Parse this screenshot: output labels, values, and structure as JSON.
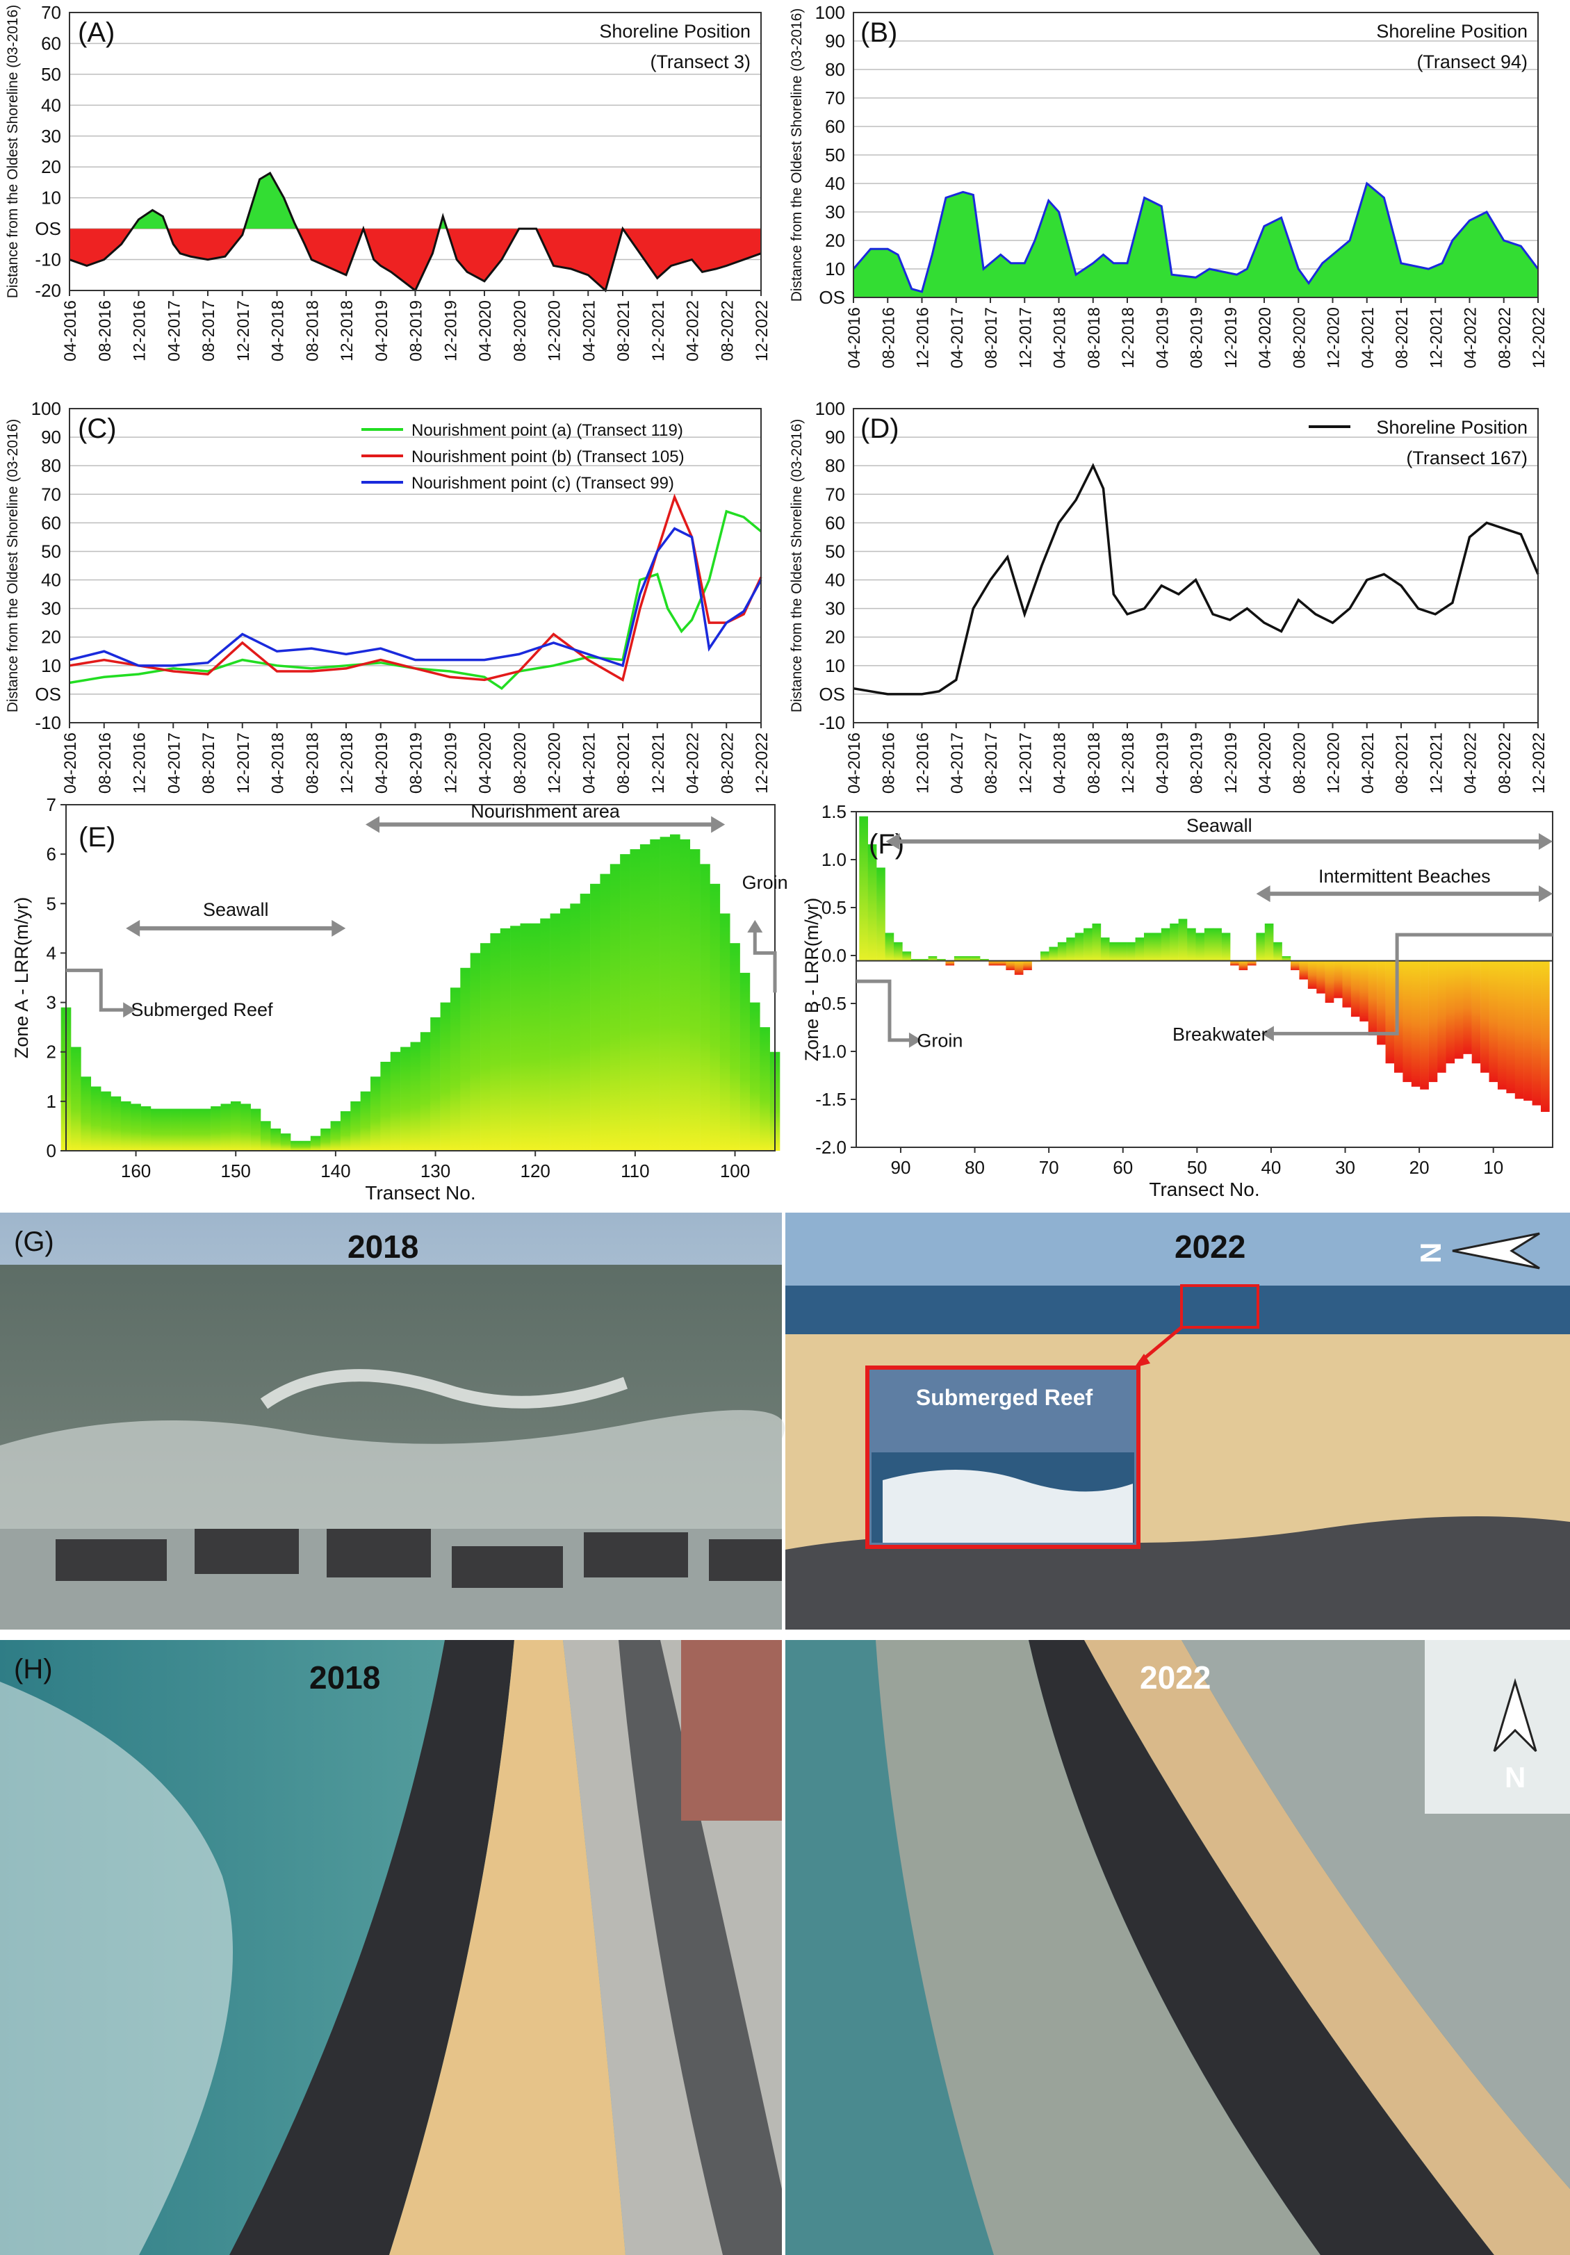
{
  "colors": {
    "gain": "#33dd33",
    "loss": "#ee2222",
    "sea": "#4e8f95",
    "sand": "#e9c98a",
    "rock": "#2f2f33",
    "reef_box": "#e51b1b"
  },
  "chart_data": [
    {
      "panel": "(A)",
      "type": "area",
      "title": "Shoreline Position",
      "subtitle": "(Transect 3)",
      "ylabel": "Distance from the Oldest Shoreline (03-2016)",
      "ylim": [
        -20,
        70
      ],
      "yticks": [
        "-20",
        "-10",
        "OS",
        "10",
        "20",
        "30",
        "40",
        "50",
        "60",
        "70"
      ],
      "xticks": [
        "04-2016",
        "08-2016",
        "12-2016",
        "04-2017",
        "08-2017",
        "12-2017",
        "04-2018",
        "08-2018",
        "12-2018",
        "04-2019",
        "08-2019",
        "12-2019",
        "04-2020",
        "08-2020",
        "12-2020",
        "04-2021",
        "08-2021",
        "12-2021",
        "04-2022",
        "08-2022",
        "12-2022"
      ],
      "x": [
        0,
        0.5,
        1,
        1.5,
        2,
        2.4,
        2.7,
        3,
        3.2,
        3.5,
        4,
        4.5,
        5,
        5.5,
        5.8,
        6.2,
        6.5,
        6.8,
        7,
        7.4,
        8,
        8.5,
        8.8,
        9,
        9.3,
        10,
        10.5,
        10.8,
        11.2,
        11.5,
        12,
        12.5,
        13,
        13.5,
        14,
        14.5,
        15,
        15.5,
        16,
        16.5,
        17,
        17.4,
        18,
        18.3,
        18.7,
        19,
        19.5,
        20
      ],
      "y": [
        -10,
        -12,
        -10,
        -5,
        3,
        6,
        4,
        -5,
        -8,
        -9,
        -10,
        -9,
        -2,
        16,
        18,
        10,
        2,
        -5,
        -10,
        -12,
        -15,
        0,
        -10,
        -12,
        -14,
        -20,
        -8,
        4,
        -10,
        -14,
        -17,
        -10,
        0,
        0,
        -12,
        -13,
        -15,
        -20,
        0,
        -8,
        -16,
        -12,
        -10,
        -14,
        -13,
        -12,
        -10,
        -8
      ]
    },
    {
      "panel": "(B)",
      "type": "area",
      "title": "Shoreline Position",
      "subtitle": "(Transect 94)",
      "ylabel": "Distance from the Oldest Shoreline (03-2016)",
      "ylim": [
        0,
        100
      ],
      "yticks": [
        "OS",
        "10",
        "20",
        "30",
        "40",
        "50",
        "60",
        "70",
        "80",
        "90",
        "100"
      ],
      "xticks": [
        "04-2016",
        "08-2016",
        "12-2016",
        "04-2017",
        "08-2017",
        "12-2017",
        "04-2018",
        "08-2018",
        "12-2018",
        "04-2019",
        "08-2019",
        "12-2019",
        "04-2020",
        "08-2020",
        "12-2020",
        "04-2021",
        "08-2021",
        "12-2021",
        "04-2022",
        "08-2022",
        "12-2022"
      ],
      "x": [
        0,
        0.5,
        1,
        1.3,
        1.7,
        2,
        2.3,
        2.7,
        3.2,
        3.5,
        3.8,
        4.3,
        4.6,
        5,
        5.3,
        5.7,
        6,
        6.5,
        7,
        7.3,
        7.6,
        8,
        8.5,
        9,
        9.3,
        10,
        10.4,
        10.8,
        11.2,
        11.5,
        12,
        12.5,
        13,
        13.3,
        13.7,
        14,
        14.5,
        15,
        15.5,
        16,
        16.4,
        16.8,
        17.2,
        17.5,
        18,
        18.5,
        19,
        19.5,
        20
      ],
      "y": [
        10,
        17,
        17,
        15,
        3,
        2,
        15,
        35,
        37,
        36,
        10,
        15,
        12,
        12,
        20,
        34,
        30,
        8,
        12,
        15,
        12,
        12,
        35,
        32,
        8,
        7,
        10,
        9,
        8,
        10,
        25,
        28,
        10,
        5,
        12,
        15,
        20,
        40,
        35,
        12,
        11,
        10,
        12,
        20,
        27,
        30,
        20,
        18,
        10
      ]
    },
    {
      "panel": "(C)",
      "type": "line",
      "ylabel": "Distance from the Oldest Shoreline (03-2016)",
      "ylim": [
        -10,
        100
      ],
      "yticks": [
        "-10",
        "OS",
        "10",
        "20",
        "30",
        "40",
        "50",
        "60",
        "70",
        "80",
        "90",
        "100"
      ],
      "xticks": [
        "04-2016",
        "08-2016",
        "12-2016",
        "04-2017",
        "08-2017",
        "12-2017",
        "04-2018",
        "08-2018",
        "12-2018",
        "04-2019",
        "08-2019",
        "12-2019",
        "04-2020",
        "08-2020",
        "12-2020",
        "04-2021",
        "08-2021",
        "12-2021",
        "04-2022",
        "08-2022",
        "12-2022"
      ],
      "series": [
        {
          "name": "Nourishment point (a) (Transect 119)",
          "color": "#22dd22",
          "x": [
            0,
            1,
            2,
            3,
            4,
            5,
            6,
            7,
            8,
            9,
            10,
            11,
            12,
            12.5,
            13,
            14,
            15,
            16,
            16.5,
            17,
            17.3,
            17.7,
            18,
            18.5,
            19,
            19.5,
            20
          ],
          "y": [
            4,
            6,
            7,
            9,
            8,
            12,
            10,
            9,
            10,
            11,
            9,
            8,
            6,
            2,
            8,
            10,
            13,
            12,
            40,
            42,
            30,
            22,
            26,
            40,
            64,
            62,
            57
          ]
        },
        {
          "name": "Nourishment point (b) (Transect 105)",
          "color": "#e21a1a",
          "x": [
            0,
            1,
            2,
            3,
            4,
            5,
            6,
            7,
            8,
            9,
            10,
            11,
            12,
            13,
            14,
            15,
            16,
            16.5,
            17,
            17.5,
            18,
            18.5,
            19,
            19.5,
            20
          ],
          "y": [
            10,
            12,
            10,
            8,
            7,
            18,
            8,
            8,
            9,
            12,
            9,
            6,
            5,
            8,
            21,
            12,
            5,
            30,
            50,
            69,
            55,
            25,
            25,
            28,
            41
          ]
        },
        {
          "name": "Nourishment point (c) (Transect 99)",
          "color": "#1a2adc",
          "x": [
            0,
            1,
            2,
            3,
            4,
            5,
            6,
            7,
            8,
            9,
            10,
            11,
            12,
            13,
            14,
            15,
            16,
            16.5,
            17,
            17.5,
            18,
            18.5,
            19,
            19.5,
            20
          ],
          "y": [
            12,
            15,
            10,
            10,
            11,
            21,
            15,
            16,
            14,
            16,
            12,
            12,
            12,
            14,
            18,
            14,
            10,
            35,
            50,
            58,
            55,
            16,
            25,
            29,
            40
          ]
        }
      ]
    },
    {
      "panel": "(D)",
      "type": "line",
      "title": "Shoreline Position",
      "subtitle": "(Transect 167)",
      "ylabel": "Distance from the Oldest Shoreline (03-2016)",
      "ylim": [
        -10,
        100
      ],
      "yticks": [
        "-10",
        "OS",
        "10",
        "20",
        "30",
        "40",
        "50",
        "60",
        "70",
        "80",
        "90",
        "100"
      ],
      "xticks": [
        "04-2016",
        "08-2016",
        "12-2016",
        "04-2017",
        "08-2017",
        "12-2017",
        "04-2018",
        "08-2018",
        "12-2018",
        "04-2019",
        "08-2019",
        "12-2019",
        "04-2020",
        "08-2020",
        "12-2020",
        "04-2021",
        "08-2021",
        "12-2021",
        "04-2022",
        "08-2022",
        "12-2022"
      ],
      "x": [
        0,
        1,
        2,
        2.5,
        3,
        3.5,
        4,
        4.5,
        5,
        5.5,
        6,
        6.5,
        7,
        7.3,
        7.6,
        8,
        8.5,
        9,
        9.5,
        10,
        10.5,
        11,
        11.5,
        12,
        12.5,
        13,
        13.5,
        14,
        14.5,
        15,
        15.5,
        16,
        16.5,
        17,
        17.5,
        18,
        18.5,
        19,
        19.5,
        20
      ],
      "y": [
        2,
        0,
        0,
        1,
        5,
        30,
        40,
        48,
        28,
        45,
        60,
        68,
        80,
        72,
        35,
        28,
        30,
        38,
        35,
        40,
        28,
        26,
        30,
        25,
        22,
        33,
        28,
        25,
        30,
        40,
        42,
        38,
        30,
        28,
        32,
        55,
        60,
        58,
        56,
        42
      ]
    },
    {
      "panel": "(E)",
      "type": "bar",
      "ylabel": "Zone A - LRR(m/yr)",
      "xlabel": "Transect No.",
      "xlim": [
        167,
        96
      ],
      "ylim": [
        0,
        7
      ],
      "xticks": [
        "160",
        "150",
        "140",
        "130",
        "120",
        "110",
        "100"
      ],
      "yticks": [
        "0",
        "1",
        "2",
        "3",
        "4",
        "5",
        "6",
        "7"
      ],
      "annotations": [
        "Nourishment area",
        "Seawall",
        "Submerged Reef",
        "Groin"
      ],
      "x_from": 167,
      "x_to": 96,
      "values": [
        2.9,
        2.1,
        1.5,
        1.3,
        1.2,
        1.1,
        1.0,
        0.95,
        0.9,
        0.85,
        0.85,
        0.85,
        0.85,
        0.85,
        0.85,
        0.9,
        0.95,
        1.0,
        0.95,
        0.85,
        0.6,
        0.45,
        0.35,
        0.2,
        0.2,
        0.3,
        0.45,
        0.6,
        0.8,
        1.0,
        1.2,
        1.5,
        1.8,
        2.0,
        2.1,
        2.2,
        2.4,
        2.7,
        3.0,
        3.3,
        3.7,
        4.0,
        4.2,
        4.4,
        4.5,
        4.55,
        4.6,
        4.6,
        4.7,
        4.8,
        4.9,
        5.0,
        5.2,
        5.4,
        5.6,
        5.8,
        6.0,
        6.1,
        6.2,
        6.3,
        6.35,
        6.4,
        6.3,
        6.1,
        5.8,
        5.4,
        4.8,
        4.2,
        3.6,
        3.0,
        2.5,
        2.0
      ]
    },
    {
      "panel": "(F)",
      "type": "bar",
      "ylabel": "Zone B - LRR(m/yr)",
      "xlabel": "Transect No.",
      "xlim": [
        96,
        2
      ],
      "ylim": [
        -2.0,
        1.6
      ],
      "xticks": [
        "90",
        "80",
        "70",
        "60",
        "50",
        "40",
        "30",
        "20",
        "10"
      ],
      "yticks": [
        "-2.0",
        "-1.5",
        "-1.0",
        "-0.5",
        "0.0",
        "0.5",
        "1.0",
        "1.5"
      ],
      "annotations": [
        "Seawall",
        "Intermittent Beaches",
        "Breakwater",
        "Groin"
      ],
      "x_from": 95,
      "x_to": 3,
      "values": [
        1.55,
        1.25,
        1.0,
        0.3,
        0.2,
        0.1,
        0.02,
        0.02,
        0.05,
        0.02,
        -0.05,
        0.05,
        0.05,
        0.05,
        0.02,
        -0.05,
        -0.05,
        -0.1,
        -0.15,
        -0.1,
        0.0,
        0.1,
        0.15,
        0.2,
        0.25,
        0.3,
        0.35,
        0.4,
        0.25,
        0.2,
        0.2,
        0.2,
        0.25,
        0.3,
        0.3,
        0.35,
        0.4,
        0.45,
        0.35,
        0.3,
        0.35,
        0.35,
        0.3,
        -0.05,
        -0.1,
        -0.05,
        0.3,
        0.4,
        0.2,
        0.05,
        -0.1,
        -0.2,
        -0.3,
        -0.35,
        -0.45,
        -0.4,
        -0.5,
        -0.6,
        -0.65,
        -0.8,
        -0.9,
        -1.1,
        -1.2,
        -1.3,
        -1.35,
        -1.38,
        -1.3,
        -1.2,
        -1.1,
        -1.05,
        -1.0,
        -1.1,
        -1.2,
        -1.3,
        -1.38,
        -1.42,
        -1.48,
        -1.5,
        -1.55,
        -1.62
      ]
    }
  ],
  "photos": {
    "g_left_year": "(G)",
    "g_left_label": "2018",
    "g_right_label": "2022",
    "g_inset_label": "Submerged Reef",
    "h_left_year": "(H)",
    "h_left_label": "2018",
    "h_right_label": "2022",
    "north_z": "N",
    "north_n": "N"
  }
}
